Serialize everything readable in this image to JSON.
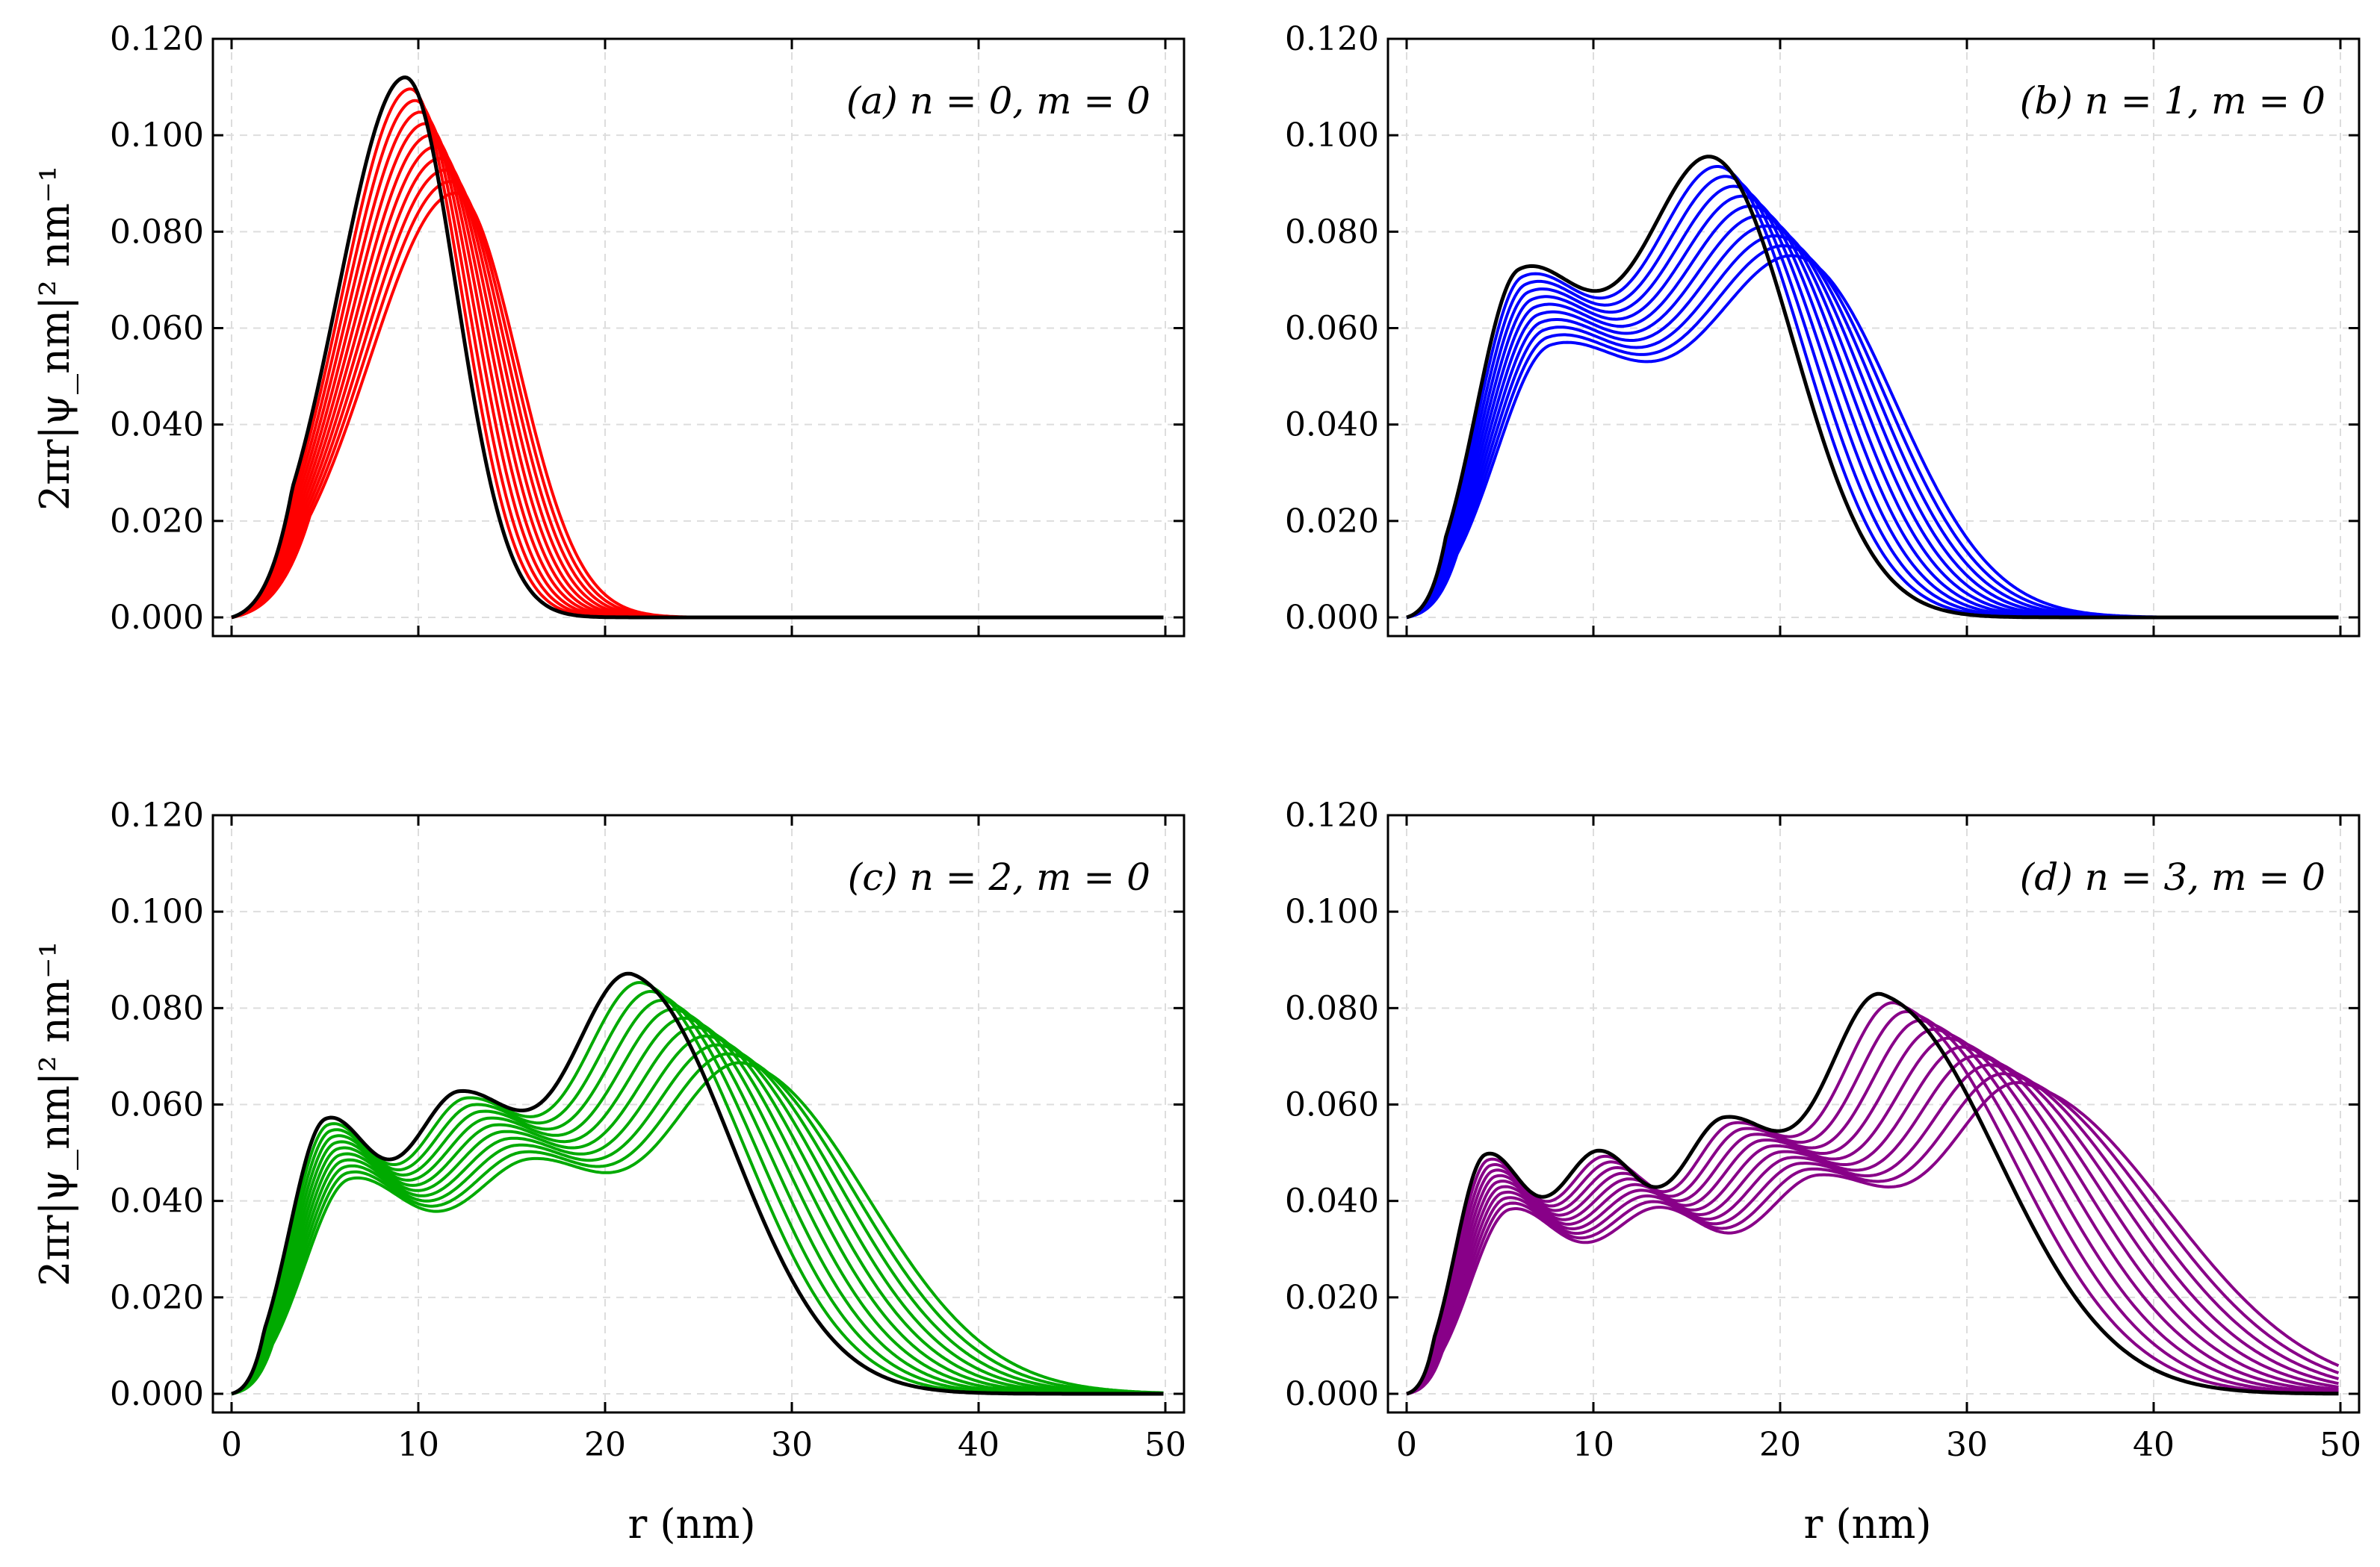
{
  "figure": {
    "ylabel": "2πr|ψ_nm|² nm⁻¹",
    "xlabel": "r (nm)"
  },
  "chart_data": [
    {
      "type": "line",
      "panel": "a",
      "label": "(a) n = 0,  m = 0",
      "n": 0,
      "m": 0,
      "series_color": "#ff0000",
      "reference_color": "#000000",
      "curve_count": 10,
      "xlim": [
        0,
        50
      ],
      "ylim": [
        0,
        0.12
      ],
      "xticks": [
        0,
        10,
        20,
        30,
        40,
        50
      ],
      "yticks": [
        "0.000",
        "0.020",
        "0.040",
        "0.060",
        "0.080",
        "0.100",
        "0.120"
      ],
      "show_xtick_labels": false,
      "reference": {
        "peaks_r": [
          9.3
        ],
        "peaks_y": [
          0.112
        ]
      },
      "final": {
        "peaks_r": [
          12.0
        ],
        "peaks_y": [
          0.088
        ]
      }
    },
    {
      "type": "line",
      "panel": "b",
      "label": "(b) n = 1,  m = 0",
      "n": 1,
      "m": 0,
      "series_color": "#0000ff",
      "reference_color": "#000000",
      "curve_count": 10,
      "xlim": [
        0,
        50
      ],
      "ylim": [
        0,
        0.12
      ],
      "xticks": [
        0,
        10,
        20,
        30,
        40,
        50
      ],
      "yticks": [
        "0.000",
        "0.020",
        "0.040",
        "0.060",
        "0.080",
        "0.100",
        "0.120"
      ],
      "show_xtick_labels": false,
      "reference": {
        "peaks_r": [
          6.0,
          16.5
        ],
        "peaks_y": [
          0.069,
          0.093
        ]
      },
      "final": {
        "peaks_r": [
          7.7,
          21.0
        ],
        "peaks_y": [
          0.054,
          0.073
        ]
      }
    },
    {
      "type": "line",
      "panel": "c",
      "label": "(c) n = 2,  m = 0",
      "n": 2,
      "m": 0,
      "series_color": "#00aa00",
      "reference_color": "#000000",
      "curve_count": 10,
      "xlim": [
        0,
        50
      ],
      "ylim": [
        0,
        0.12
      ],
      "xticks": [
        0,
        10,
        20,
        30,
        40,
        50
      ],
      "yticks": [
        "0.000",
        "0.020",
        "0.040",
        "0.060",
        "0.080",
        "0.100",
        "0.120"
      ],
      "show_xtick_labels": true,
      "reference": {
        "peaks_r": [
          5.0,
          12.2,
          21.5
        ],
        "peaks_y": [
          0.055,
          0.058,
          0.085
        ]
      },
      "final": {
        "peaks_r": [
          6.3,
          16.0,
          27.5
        ],
        "peaks_y": [
          0.043,
          0.045,
          0.067
        ]
      }
    },
    {
      "type": "line",
      "panel": "d",
      "label": "(d) n = 3,  m = 0",
      "n": 3,
      "m": 0,
      "series_color": "#880088",
      "reference_color": "#000000",
      "curve_count": 10,
      "xlim": [
        0,
        50
      ],
      "ylim": [
        0,
        0.12
      ],
      "xticks": [
        0,
        10,
        20,
        30,
        40,
        50
      ],
      "yticks": [
        "0.000",
        "0.020",
        "0.040",
        "0.060",
        "0.080",
        "0.100",
        "0.120"
      ],
      "show_xtick_labels": true,
      "reference": {
        "peaks_r": [
          4.2,
          10.3,
          17.0,
          25.5
        ],
        "peaks_y": [
          0.048,
          0.047,
          0.053,
          0.081
        ]
      },
      "final": {
        "peaks_r": [
          5.5,
          13.5,
          22.0,
          33.0
        ],
        "peaks_y": [
          0.037,
          0.036,
          0.042,
          0.063
        ]
      }
    }
  ]
}
